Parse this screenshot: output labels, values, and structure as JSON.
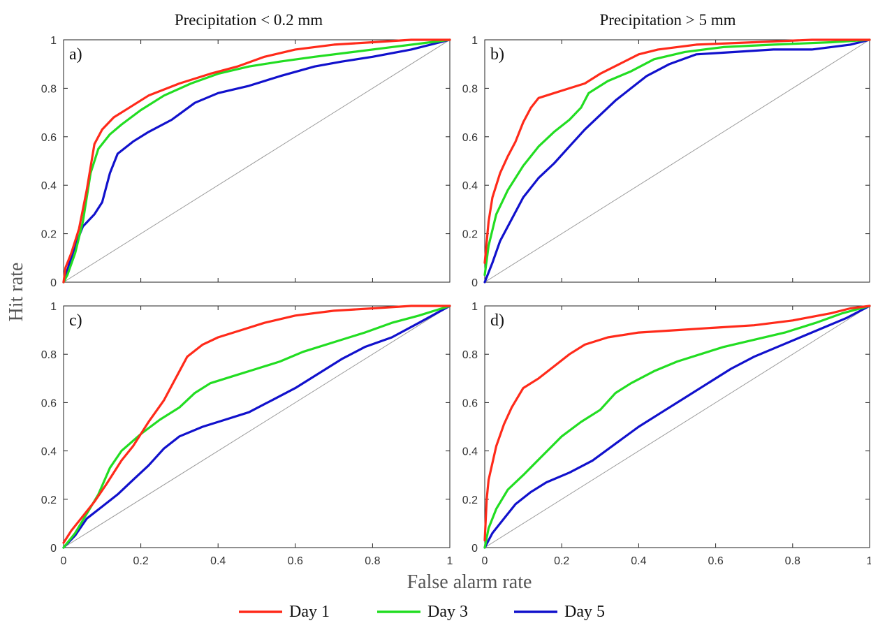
{
  "figure": {
    "column_titles": [
      "Precipitation  < 0.2 mm",
      "Precipitation  > 5 mm"
    ],
    "xlabel": "False alarm rate",
    "ylabel": "Hit rate"
  },
  "legend": [
    {
      "label": "Day 1",
      "color": "#ff2a1a"
    },
    {
      "label": "Day 3",
      "color": "#22dd22"
    },
    {
      "label": "Day 5",
      "color": "#1111cc"
    }
  ],
  "chart_data": [
    {
      "type": "line",
      "panel": "a)",
      "xlim": [
        0,
        1
      ],
      "ylim": [
        0,
        1
      ],
      "xticks": [
        "0",
        "0.2",
        "0.4",
        "0.6",
        "0.8",
        "1"
      ],
      "yticks": [
        "0",
        "0.2",
        "0.4",
        "0.6",
        "0.8",
        "1"
      ],
      "reference_line": "diagonal",
      "series": [
        {
          "name": "Day 1",
          "points": [
            [
              0,
              0
            ],
            [
              0.005,
              0.06
            ],
            [
              0.02,
              0.12
            ],
            [
              0.04,
              0.22
            ],
            [
              0.06,
              0.38
            ],
            [
              0.08,
              0.57
            ],
            [
              0.1,
              0.63
            ],
            [
              0.13,
              0.68
            ],
            [
              0.17,
              0.72
            ],
            [
              0.22,
              0.77
            ],
            [
              0.3,
              0.82
            ],
            [
              0.38,
              0.86
            ],
            [
              0.45,
              0.89
            ],
            [
              0.52,
              0.93
            ],
            [
              0.6,
              0.96
            ],
            [
              0.7,
              0.98
            ],
            [
              0.8,
              0.99
            ],
            [
              0.9,
              1.0
            ],
            [
              1,
              1
            ]
          ]
        },
        {
          "name": "Day 3",
          "points": [
            [
              0,
              0
            ],
            [
              0.01,
              0.03
            ],
            [
              0.03,
              0.12
            ],
            [
              0.05,
              0.25
            ],
            [
              0.07,
              0.45
            ],
            [
              0.09,
              0.55
            ],
            [
              0.12,
              0.61
            ],
            [
              0.15,
              0.65
            ],
            [
              0.2,
              0.71
            ],
            [
              0.26,
              0.77
            ],
            [
              0.33,
              0.82
            ],
            [
              0.4,
              0.86
            ],
            [
              0.48,
              0.89
            ],
            [
              0.56,
              0.91
            ],
            [
              0.65,
              0.93
            ],
            [
              0.75,
              0.95
            ],
            [
              0.85,
              0.97
            ],
            [
              0.95,
              0.99
            ],
            [
              1,
              1
            ]
          ]
        },
        {
          "name": "Day 5",
          "points": [
            [
              0,
              0
            ],
            [
              0.01,
              0.05
            ],
            [
              0.03,
              0.15
            ],
            [
              0.05,
              0.23
            ],
            [
              0.08,
              0.28
            ],
            [
              0.1,
              0.33
            ],
            [
              0.12,
              0.45
            ],
            [
              0.14,
              0.53
            ],
            [
              0.18,
              0.58
            ],
            [
              0.22,
              0.62
            ],
            [
              0.28,
              0.67
            ],
            [
              0.34,
              0.74
            ],
            [
              0.4,
              0.78
            ],
            [
              0.48,
              0.81
            ],
            [
              0.56,
              0.85
            ],
            [
              0.65,
              0.89
            ],
            [
              0.72,
              0.91
            ],
            [
              0.8,
              0.93
            ],
            [
              0.9,
              0.96
            ],
            [
              1,
              1
            ]
          ]
        }
      ]
    },
    {
      "type": "line",
      "panel": "b)",
      "xlim": [
        0,
        1
      ],
      "ylim": [
        0,
        1
      ],
      "xticks": [
        "0",
        "0.2",
        "0.4",
        "0.6",
        "0.8",
        "1"
      ],
      "yticks": [
        "0",
        "0.2",
        "0.4",
        "0.6",
        "0.8",
        "1"
      ],
      "reference_line": "diagonal",
      "series": [
        {
          "name": "Day 1",
          "points": [
            [
              0,
              0.08
            ],
            [
              0.01,
              0.25
            ],
            [
              0.02,
              0.35
            ],
            [
              0.04,
              0.45
            ],
            [
              0.06,
              0.52
            ],
            [
              0.08,
              0.58
            ],
            [
              0.1,
              0.66
            ],
            [
              0.12,
              0.72
            ],
            [
              0.14,
              0.76
            ],
            [
              0.18,
              0.78
            ],
            [
              0.22,
              0.8
            ],
            [
              0.26,
              0.82
            ],
            [
              0.3,
              0.86
            ],
            [
              0.35,
              0.9
            ],
            [
              0.4,
              0.94
            ],
            [
              0.45,
              0.96
            ],
            [
              0.55,
              0.98
            ],
            [
              0.7,
              0.99
            ],
            [
              0.85,
              1.0
            ],
            [
              1,
              1
            ]
          ]
        },
        {
          "name": "Day 3",
          "points": [
            [
              0,
              0.03
            ],
            [
              0.01,
              0.15
            ],
            [
              0.03,
              0.28
            ],
            [
              0.06,
              0.38
            ],
            [
              0.1,
              0.48
            ],
            [
              0.14,
              0.56
            ],
            [
              0.18,
              0.62
            ],
            [
              0.22,
              0.67
            ],
            [
              0.25,
              0.72
            ],
            [
              0.27,
              0.78
            ],
            [
              0.32,
              0.83
            ],
            [
              0.38,
              0.87
            ],
            [
              0.44,
              0.92
            ],
            [
              0.52,
              0.95
            ],
            [
              0.62,
              0.97
            ],
            [
              0.75,
              0.98
            ],
            [
              0.9,
              0.99
            ],
            [
              1,
              1
            ]
          ]
        },
        {
          "name": "Day 5",
          "points": [
            [
              0,
              0
            ],
            [
              0.02,
              0.08
            ],
            [
              0.04,
              0.17
            ],
            [
              0.07,
              0.26
            ],
            [
              0.1,
              0.35
            ],
            [
              0.14,
              0.43
            ],
            [
              0.18,
              0.49
            ],
            [
              0.22,
              0.56
            ],
            [
              0.26,
              0.63
            ],
            [
              0.3,
              0.69
            ],
            [
              0.34,
              0.75
            ],
            [
              0.38,
              0.8
            ],
            [
              0.42,
              0.85
            ],
            [
              0.48,
              0.9
            ],
            [
              0.55,
              0.94
            ],
            [
              0.65,
              0.95
            ],
            [
              0.75,
              0.96
            ],
            [
              0.85,
              0.96
            ],
            [
              0.95,
              0.98
            ],
            [
              1,
              1
            ]
          ]
        }
      ]
    },
    {
      "type": "line",
      "panel": "c)",
      "xlim": [
        0,
        1
      ],
      "ylim": [
        0,
        1
      ],
      "xticks": [
        "0",
        "0.2",
        "0.4",
        "0.6",
        "0.8",
        "1"
      ],
      "yticks": [
        "0",
        "0.2",
        "0.4",
        "0.6",
        "0.8",
        "1"
      ],
      "reference_line": "diagonal",
      "series": [
        {
          "name": "Day 1",
          "points": [
            [
              0,
              0.02
            ],
            [
              0.02,
              0.07
            ],
            [
              0.05,
              0.13
            ],
            [
              0.08,
              0.19
            ],
            [
              0.11,
              0.26
            ],
            [
              0.15,
              0.36
            ],
            [
              0.18,
              0.42
            ],
            [
              0.22,
              0.52
            ],
            [
              0.26,
              0.61
            ],
            [
              0.29,
              0.7
            ],
            [
              0.32,
              0.79
            ],
            [
              0.36,
              0.84
            ],
            [
              0.4,
              0.87
            ],
            [
              0.46,
              0.9
            ],
            [
              0.52,
              0.93
            ],
            [
              0.6,
              0.96
            ],
            [
              0.7,
              0.98
            ],
            [
              0.8,
              0.99
            ],
            [
              0.9,
              1.0
            ],
            [
              1,
              1
            ]
          ]
        },
        {
          "name": "Day 3",
          "points": [
            [
              0,
              0
            ],
            [
              0.03,
              0.06
            ],
            [
              0.06,
              0.14
            ],
            [
              0.09,
              0.22
            ],
            [
              0.12,
              0.33
            ],
            [
              0.15,
              0.4
            ],
            [
              0.2,
              0.47
            ],
            [
              0.25,
              0.53
            ],
            [
              0.3,
              0.58
            ],
            [
              0.34,
              0.64
            ],
            [
              0.38,
              0.68
            ],
            [
              0.44,
              0.71
            ],
            [
              0.5,
              0.74
            ],
            [
              0.56,
              0.77
            ],
            [
              0.62,
              0.81
            ],
            [
              0.7,
              0.85
            ],
            [
              0.78,
              0.89
            ],
            [
              0.85,
              0.93
            ],
            [
              0.92,
              0.96
            ],
            [
              1,
              1
            ]
          ]
        },
        {
          "name": "Day 5",
          "points": [
            [
              0,
              0
            ],
            [
              0.03,
              0.05
            ],
            [
              0.06,
              0.12
            ],
            [
              0.1,
              0.17
            ],
            [
              0.14,
              0.22
            ],
            [
              0.18,
              0.28
            ],
            [
              0.22,
              0.34
            ],
            [
              0.26,
              0.41
            ],
            [
              0.3,
              0.46
            ],
            [
              0.36,
              0.5
            ],
            [
              0.42,
              0.53
            ],
            [
              0.48,
              0.56
            ],
            [
              0.54,
              0.61
            ],
            [
              0.6,
              0.66
            ],
            [
              0.66,
              0.72
            ],
            [
              0.72,
              0.78
            ],
            [
              0.78,
              0.83
            ],
            [
              0.85,
              0.87
            ],
            [
              0.92,
              0.93
            ],
            [
              1,
              1
            ]
          ]
        }
      ]
    },
    {
      "type": "line",
      "panel": "d)",
      "xlim": [
        0,
        1
      ],
      "ylim": [
        0,
        1
      ],
      "xticks": [
        "0",
        "0.2",
        "0.4",
        "0.6",
        "0.8",
        "1"
      ],
      "yticks": [
        "0",
        "0.2",
        "0.4",
        "0.6",
        "0.8",
        "1"
      ],
      "reference_line": "diagonal",
      "series": [
        {
          "name": "Day 1",
          "points": [
            [
              0,
              0.03
            ],
            [
              0.005,
              0.2
            ],
            [
              0.01,
              0.28
            ],
            [
              0.02,
              0.35
            ],
            [
              0.03,
              0.42
            ],
            [
              0.05,
              0.51
            ],
            [
              0.07,
              0.58
            ],
            [
              0.1,
              0.66
            ],
            [
              0.14,
              0.7
            ],
            [
              0.18,
              0.75
            ],
            [
              0.22,
              0.8
            ],
            [
              0.26,
              0.84
            ],
            [
              0.32,
              0.87
            ],
            [
              0.4,
              0.89
            ],
            [
              0.5,
              0.9
            ],
            [
              0.6,
              0.91
            ],
            [
              0.7,
              0.92
            ],
            [
              0.8,
              0.94
            ],
            [
              0.9,
              0.97
            ],
            [
              0.95,
              0.99
            ],
            [
              1,
              1
            ]
          ]
        },
        {
          "name": "Day 3",
          "points": [
            [
              0,
              0
            ],
            [
              0.01,
              0.08
            ],
            [
              0.03,
              0.16
            ],
            [
              0.06,
              0.24
            ],
            [
              0.1,
              0.3
            ],
            [
              0.15,
              0.38
            ],
            [
              0.2,
              0.46
            ],
            [
              0.25,
              0.52
            ],
            [
              0.3,
              0.57
            ],
            [
              0.34,
              0.64
            ],
            [
              0.38,
              0.68
            ],
            [
              0.44,
              0.73
            ],
            [
              0.5,
              0.77
            ],
            [
              0.56,
              0.8
            ],
            [
              0.62,
              0.83
            ],
            [
              0.7,
              0.86
            ],
            [
              0.78,
              0.89
            ],
            [
              0.86,
              0.93
            ],
            [
              0.93,
              0.97
            ],
            [
              1,
              1
            ]
          ]
        },
        {
          "name": "Day 5",
          "points": [
            [
              0,
              0
            ],
            [
              0.02,
              0.06
            ],
            [
              0.05,
              0.12
            ],
            [
              0.08,
              0.18
            ],
            [
              0.12,
              0.23
            ],
            [
              0.16,
              0.27
            ],
            [
              0.22,
              0.31
            ],
            [
              0.28,
              0.36
            ],
            [
              0.34,
              0.43
            ],
            [
              0.4,
              0.5
            ],
            [
              0.46,
              0.56
            ],
            [
              0.52,
              0.62
            ],
            [
              0.58,
              0.68
            ],
            [
              0.64,
              0.74
            ],
            [
              0.7,
              0.79
            ],
            [
              0.76,
              0.83
            ],
            [
              0.82,
              0.87
            ],
            [
              0.88,
              0.91
            ],
            [
              0.94,
              0.95
            ],
            [
              1,
              1
            ]
          ]
        }
      ]
    }
  ]
}
